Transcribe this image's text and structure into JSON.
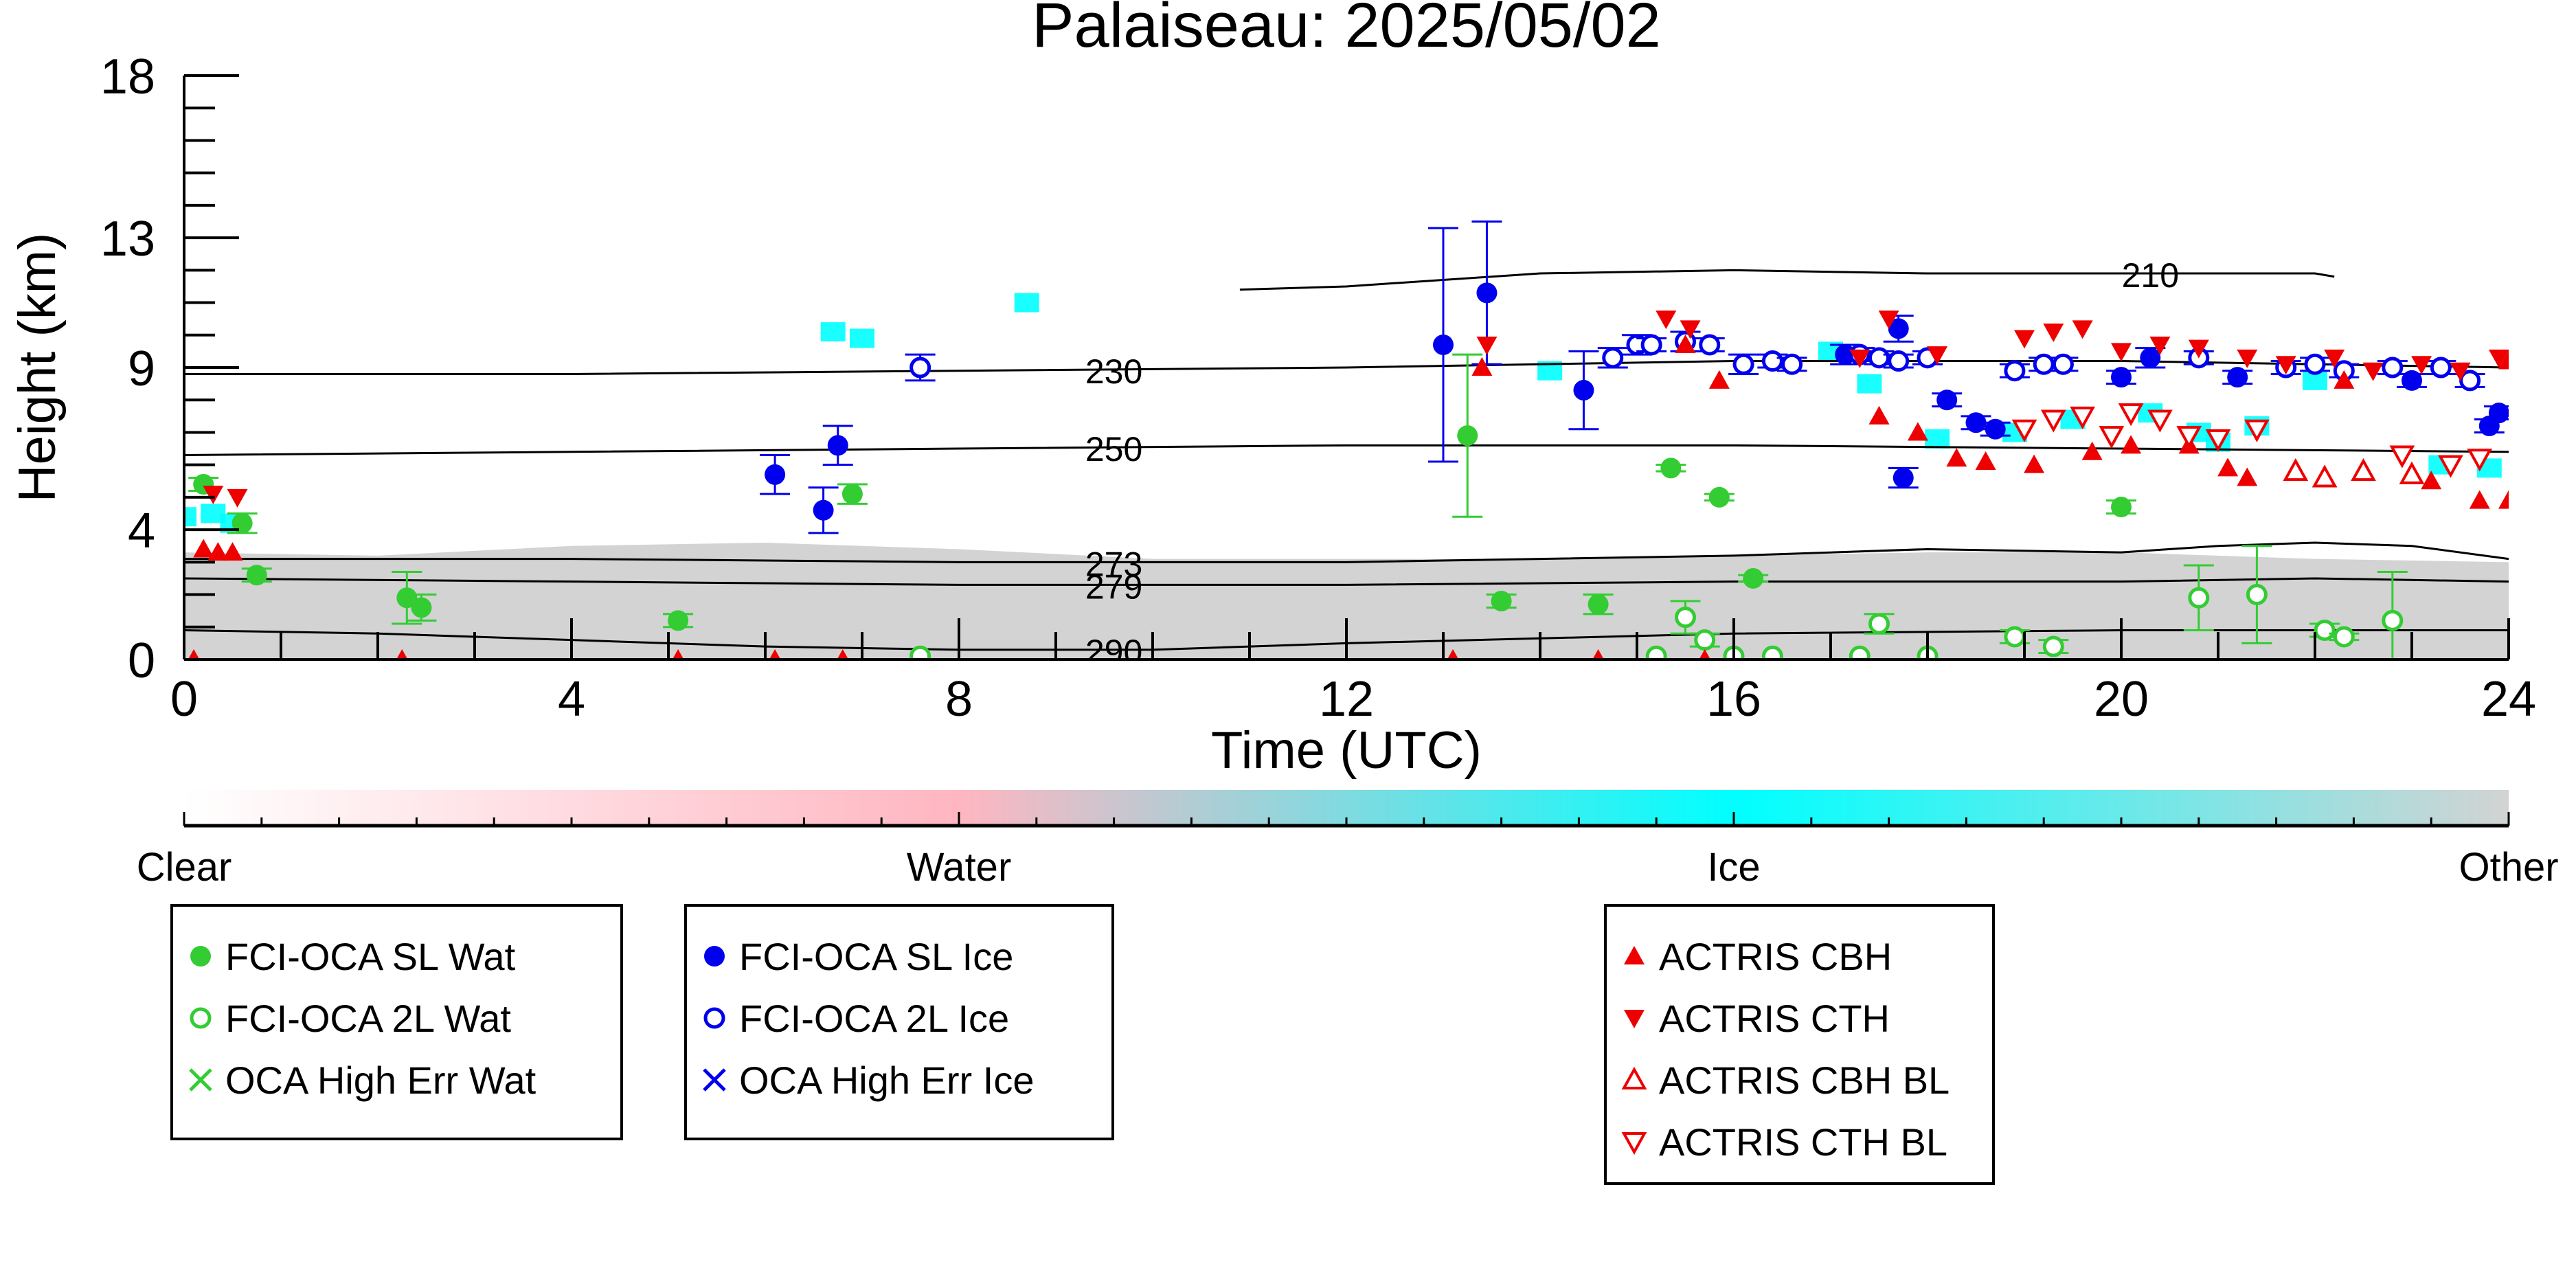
{
  "chart_data": {
    "type": "scatter",
    "title": "Palaiseau: 2025/05/02",
    "xlabel": "Time (UTC)",
    "ylabel": "Height (km)",
    "xlim": [
      0,
      24
    ],
    "ylim": [
      0,
      18
    ],
    "xticks": [
      "0",
      "4",
      "8",
      "12",
      "16",
      "20",
      "24"
    ],
    "yticks": [
      "0",
      "4",
      "9",
      "13",
      "18"
    ],
    "grid": false,
    "background": {
      "description_color": "#d3d3d3",
      "gray_layer_top_km": [
        [
          0,
          3.3
        ],
        [
          2,
          3.2
        ],
        [
          4,
          3.5
        ],
        [
          6,
          3.6
        ],
        [
          8,
          3.4
        ],
        [
          10,
          3.1
        ],
        [
          12,
          3.1
        ],
        [
          14,
          3.1
        ],
        [
          16,
          3.2
        ],
        [
          18,
          3.3
        ],
        [
          20,
          3.3
        ],
        [
          22,
          3.1
        ],
        [
          24,
          3.0
        ]
      ]
    },
    "isotherms": [
      {
        "label": "210",
        "label_x": 20.3,
        "points": [
          [
            10.9,
            11.4
          ],
          [
            12,
            11.5
          ],
          [
            14,
            11.9
          ],
          [
            16,
            12.0
          ],
          [
            18,
            11.9
          ],
          [
            20,
            11.9
          ],
          [
            22,
            11.9
          ],
          [
            22.2,
            11.8
          ]
        ]
      },
      {
        "label": "230",
        "label_x": 9.6,
        "points": [
          [
            0,
            8.8
          ],
          [
            4,
            8.8
          ],
          [
            8,
            8.9
          ],
          [
            12,
            9.0
          ],
          [
            16,
            9.2
          ],
          [
            20,
            9.2
          ],
          [
            24,
            9.0
          ]
        ]
      },
      {
        "label": "250",
        "label_x": 9.6,
        "points": [
          [
            0,
            6.3
          ],
          [
            4,
            6.4
          ],
          [
            8,
            6.5
          ],
          [
            12,
            6.6
          ],
          [
            16,
            6.6
          ],
          [
            20,
            6.5
          ],
          [
            24,
            6.4
          ]
        ]
      },
      {
        "label": "273",
        "label_x": 9.6,
        "points": [
          [
            0,
            3.1
          ],
          [
            4,
            3.1
          ],
          [
            8,
            3.0
          ],
          [
            12,
            3.0
          ],
          [
            16,
            3.2
          ],
          [
            18,
            3.4
          ],
          [
            20,
            3.3
          ],
          [
            21,
            3.5
          ],
          [
            22,
            3.6
          ],
          [
            23,
            3.5
          ],
          [
            24,
            3.1
          ]
        ]
      },
      {
        "label": "279",
        "label_x": 9.6,
        "points": [
          [
            0,
            2.5
          ],
          [
            4,
            2.4
          ],
          [
            8,
            2.3
          ],
          [
            12,
            2.3
          ],
          [
            16,
            2.4
          ],
          [
            20,
            2.4
          ],
          [
            22,
            2.5
          ],
          [
            24,
            2.4
          ]
        ]
      },
      {
        "label": "290",
        "label_x": 9.6,
        "points": [
          [
            0,
            0.9
          ],
          [
            2,
            0.8
          ],
          [
            4,
            0.6
          ],
          [
            6,
            0.4
          ],
          [
            8,
            0.3
          ],
          [
            10,
            0.3
          ],
          [
            12,
            0.5
          ],
          [
            16,
            0.8
          ],
          [
            20,
            0.9
          ],
          [
            24,
            0.9
          ]
        ]
      }
    ],
    "series": [
      {
        "name": "FCI-OCA SL Wat",
        "color": "#33cc33",
        "marker": "filled-circle",
        "points": [
          [
            0.2,
            5.4
          ],
          [
            0.6,
            4.2
          ],
          [
            0.75,
            2.6
          ],
          [
            2.3,
            1.9
          ],
          [
            2.45,
            1.6
          ],
          [
            5.1,
            1.2
          ],
          [
            6.9,
            5.1
          ],
          [
            13.25,
            6.9
          ],
          [
            13.6,
            1.8
          ],
          [
            14.6,
            1.7
          ],
          [
            15.35,
            5.9
          ],
          [
            15.85,
            5.0
          ],
          [
            16.2,
            2.5
          ],
          [
            20.0,
            4.7
          ]
        ],
        "err": [
          0.2,
          0.3,
          0.2,
          0.8,
          0.4,
          0.2,
          0.3,
          2.5,
          0.2,
          0.3,
          0.1,
          0.1,
          0.1,
          0.2
        ]
      },
      {
        "name": "FCI-OCA 2L Wat",
        "color": "#33cc33",
        "marker": "open-circle",
        "points": [
          [
            7.6,
            0.1
          ],
          [
            15.2,
            0.1
          ],
          [
            15.5,
            1.3
          ],
          [
            15.7,
            0.6
          ],
          [
            16.0,
            0.1
          ],
          [
            16.4,
            0.1
          ],
          [
            17.3,
            0.1
          ],
          [
            17.5,
            1.1
          ],
          [
            18.0,
            0.1
          ],
          [
            18.9,
            0.7
          ],
          [
            19.3,
            0.4
          ],
          [
            20.8,
            1.9
          ],
          [
            21.4,
            2.0
          ],
          [
            22.1,
            0.9
          ],
          [
            22.3,
            0.7
          ],
          [
            22.8,
            1.2
          ]
        ],
        "err": [
          0,
          0,
          0.5,
          0.2,
          0,
          0,
          0,
          0.3,
          0,
          0.2,
          0.2,
          1.0,
          1.5,
          0.2,
          0.1,
          1.5
        ]
      },
      {
        "name": "OCA High Err Wat",
        "color": "#33cc33",
        "marker": "x",
        "points": []
      },
      {
        "name": "FCI-OCA SL Ice",
        "color": "#0000ee",
        "marker": "filled-circle",
        "points": [
          [
            6.1,
            5.7
          ],
          [
            6.6,
            4.6
          ],
          [
            6.75,
            6.6
          ],
          [
            13.0,
            9.7
          ],
          [
            13.45,
            11.3
          ],
          [
            14.45,
            8.3
          ],
          [
            17.15,
            9.4
          ],
          [
            17.7,
            10.2
          ],
          [
            17.75,
            5.6
          ],
          [
            18.2,
            8.0
          ],
          [
            18.5,
            7.3
          ],
          [
            18.7,
            7.1
          ],
          [
            20.0,
            8.7
          ],
          [
            20.3,
            9.3
          ],
          [
            21.2,
            8.7
          ],
          [
            23.0,
            8.6
          ],
          [
            23.8,
            7.2
          ],
          [
            23.9,
            7.6
          ]
        ],
        "err": [
          0.6,
          0.7,
          0.6,
          3.6,
          2.2,
          1.2,
          0.3,
          0.4,
          0.3,
          0.2,
          0.2,
          0.2,
          0.2,
          0.3,
          0.2,
          0.2,
          0.2,
          0.2
        ]
      },
      {
        "name": "FCI-OCA 2L Ice",
        "color": "#0000ee",
        "marker": "open-circle",
        "points": [
          [
            7.6,
            9.0
          ],
          [
            14.75,
            9.3
          ],
          [
            15.0,
            9.7
          ],
          [
            15.15,
            9.7
          ],
          [
            15.5,
            9.8
          ],
          [
            15.75,
            9.7
          ],
          [
            16.1,
            9.1
          ],
          [
            16.4,
            9.2
          ],
          [
            16.6,
            9.1
          ],
          [
            17.3,
            9.4
          ],
          [
            17.5,
            9.3
          ],
          [
            17.7,
            9.2
          ],
          [
            18.0,
            9.3
          ],
          [
            18.9,
            8.9
          ],
          [
            19.2,
            9.1
          ],
          [
            19.4,
            9.1
          ],
          [
            20.8,
            9.3
          ],
          [
            21.7,
            9.0
          ],
          [
            22.0,
            9.1
          ],
          [
            22.3,
            8.9
          ],
          [
            22.8,
            9.0
          ],
          [
            23.3,
            9.0
          ],
          [
            23.6,
            8.6
          ]
        ],
        "err": [
          0.4,
          0.3,
          0.3,
          0.2,
          0.3,
          0.2,
          0.3,
          0.2,
          0.2,
          0.2,
          0.2,
          0.2,
          0.2,
          0.2,
          0.2,
          0.2,
          0.2,
          0.2,
          0.2,
          0.2,
          0.2,
          0.2,
          0.2
        ]
      },
      {
        "name": "OCA High Err Ice",
        "color": "#0000ee",
        "marker": "x",
        "points": []
      },
      {
        "name": "ACTRIS CBH",
        "color": "#ee0000",
        "marker": "triangle-up",
        "points": [
          [
            0.2,
            3.4
          ],
          [
            0.35,
            3.3
          ],
          [
            0.5,
            3.3
          ],
          [
            13.4,
            9.0
          ],
          [
            15.5,
            9.7
          ],
          [
            15.85,
            8.6
          ],
          [
            17.5,
            7.5
          ],
          [
            17.9,
            7.0
          ],
          [
            18.3,
            6.2
          ],
          [
            18.6,
            6.1
          ],
          [
            19.1,
            6.0
          ],
          [
            19.7,
            6.4
          ],
          [
            20.1,
            6.6
          ],
          [
            20.7,
            6.6
          ],
          [
            21.1,
            5.9
          ],
          [
            21.3,
            5.6
          ],
          [
            22.3,
            8.6
          ],
          [
            23.2,
            5.5
          ],
          [
            23.7,
            4.9
          ],
          [
            24.0,
            4.9
          ],
          [
            24.0,
            9.2
          ],
          [
            0.1,
            0.0
          ],
          [
            2.25,
            0.0
          ],
          [
            5.1,
            0.0
          ],
          [
            6.1,
            0.0
          ],
          [
            6.8,
            0.0
          ],
          [
            13.1,
            0.0
          ],
          [
            14.6,
            0.0
          ],
          [
            15.7,
            0.0
          ]
        ]
      },
      {
        "name": "ACTRIS CTH",
        "color": "#ee0000",
        "marker": "triangle-down",
        "points": [
          [
            0.3,
            5.1
          ],
          [
            0.55,
            5.0
          ],
          [
            13.45,
            9.7
          ],
          [
            15.3,
            10.5
          ],
          [
            15.55,
            10.2
          ],
          [
            17.3,
            9.3
          ],
          [
            17.6,
            10.5
          ],
          [
            18.1,
            9.4
          ],
          [
            19.0,
            9.9
          ],
          [
            19.3,
            10.1
          ],
          [
            19.6,
            10.2
          ],
          [
            20.0,
            9.5
          ],
          [
            20.4,
            9.7
          ],
          [
            20.8,
            9.6
          ],
          [
            21.3,
            9.3
          ],
          [
            21.7,
            9.1
          ],
          [
            22.2,
            9.3
          ],
          [
            22.6,
            8.9
          ],
          [
            23.1,
            9.1
          ],
          [
            23.5,
            8.9
          ],
          [
            23.9,
            9.3
          ]
        ]
      },
      {
        "name": "ACTRIS CBH BL",
        "color": "#ee0000",
        "marker": "open-triangle-up",
        "points": [
          [
            21.8,
            5.8
          ],
          [
            22.1,
            5.6
          ],
          [
            22.5,
            5.8
          ],
          [
            23.0,
            5.7
          ]
        ]
      },
      {
        "name": "ACTRIS CTH BL",
        "color": "#ee0000",
        "marker": "open-triangle-down",
        "points": [
          [
            19.0,
            7.1
          ],
          [
            19.3,
            7.4
          ],
          [
            19.6,
            7.5
          ],
          [
            19.9,
            6.9
          ],
          [
            20.1,
            7.6
          ],
          [
            20.4,
            7.4
          ],
          [
            20.7,
            6.9
          ],
          [
            21.0,
            6.8
          ],
          [
            21.4,
            7.1
          ],
          [
            22.9,
            6.3
          ],
          [
            23.4,
            6.0
          ],
          [
            23.7,
            6.2
          ]
        ]
      }
    ],
    "ice_patches": [
      [
        0.0,
        4.4
      ],
      [
        0.3,
        4.5
      ],
      [
        0.5,
        4.2
      ],
      [
        6.7,
        10.1
      ],
      [
        7.0,
        9.9
      ],
      [
        8.7,
        11.0
      ],
      [
        14.1,
        8.9
      ],
      [
        17.0,
        9.5
      ],
      [
        17.4,
        8.5
      ],
      [
        18.1,
        6.8
      ],
      [
        18.9,
        7.0
      ],
      [
        19.5,
        7.4
      ],
      [
        20.3,
        7.6
      ],
      [
        20.8,
        7.0
      ],
      [
        21.0,
        6.7
      ],
      [
        21.4,
        7.2
      ],
      [
        22.0,
        8.6
      ],
      [
        23.3,
        6.0
      ],
      [
        23.8,
        5.9
      ]
    ],
    "colorbar": {
      "labels": [
        "Clear",
        "Water",
        "Ice",
        "Other"
      ],
      "colors": [
        "#ffffff",
        "#ffb6c1",
        "#00ffff",
        "#d3d3d3"
      ]
    },
    "legend": {
      "placement": "bottom",
      "groups": [
        [
          "FCI-OCA SL Wat",
          "FCI-OCA 2L Wat",
          "OCA High Err Wat"
        ],
        [
          "FCI-OCA SL Ice",
          "FCI-OCA 2L Ice",
          "OCA High Err Ice"
        ],
        [
          "ACTRIS CBH",
          "ACTRIS CTH",
          "ACTRIS CBH BL",
          "ACTRIS CTH BL"
        ]
      ]
    }
  }
}
